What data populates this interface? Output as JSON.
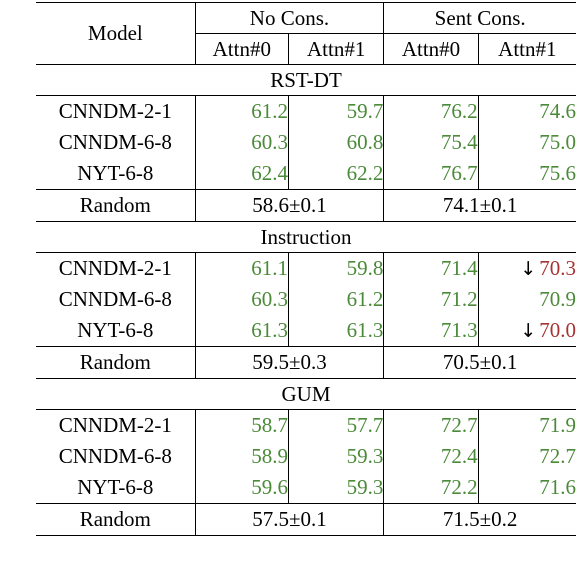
{
  "table": {
    "model_header": "Model",
    "group_headers": [
      "No Cons.",
      "Sent Cons."
    ],
    "sub_headers": [
      "Attn#0",
      "Attn#1",
      "Attn#0",
      "Attn#1"
    ],
    "colors": {
      "green": "#4a8a38",
      "red": "#a83232"
    },
    "sections": [
      {
        "name": "RST-DT",
        "rows": [
          {
            "model": "CNNDM-2-1",
            "values": [
              "61.2",
              "59.7",
              "76.2",
              "74.6"
            ],
            "bold": [
              false,
              false,
              false,
              false
            ],
            "down": [
              false,
              false,
              false,
              false
            ],
            "red": [
              false,
              false,
              false,
              false
            ]
          },
          {
            "model": "CNNDM-6-8",
            "values": [
              "60.3",
              "60.8",
              "75.4",
              "75.0"
            ],
            "bold": [
              false,
              false,
              false,
              false
            ],
            "down": [
              false,
              false,
              false,
              false
            ],
            "red": [
              false,
              false,
              false,
              false
            ]
          },
          {
            "model": "NYT-6-8",
            "values": [
              "62.4",
              "62.2",
              "76.7",
              "75.6"
            ],
            "bold": [
              true,
              false,
              true,
              false
            ],
            "down": [
              false,
              false,
              false,
              false
            ],
            "red": [
              false,
              false,
              false,
              false
            ]
          }
        ],
        "random": {
          "label": "Random",
          "values": [
            "58.6±0.1",
            "74.1±0.1"
          ]
        }
      },
      {
        "name": "Instruction",
        "rows": [
          {
            "model": "CNNDM-2-1",
            "values": [
              "61.1",
              "59.8",
              "71.4",
              "70.3"
            ],
            "bold": [
              false,
              false,
              true,
              false
            ],
            "down": [
              false,
              false,
              false,
              true
            ],
            "red": [
              false,
              false,
              false,
              true
            ]
          },
          {
            "model": "CNNDM-6-8",
            "values": [
              "60.3",
              "61.2",
              "71.2",
              "70.9"
            ],
            "bold": [
              false,
              true,
              false,
              false
            ],
            "down": [
              false,
              false,
              false,
              false
            ],
            "red": [
              false,
              false,
              false,
              false
            ]
          },
          {
            "model": "NYT-6-8",
            "values": [
              "61.3",
              "61.3",
              "71.3",
              "70.0"
            ],
            "bold": [
              true,
              false,
              false,
              false
            ],
            "down": [
              false,
              false,
              false,
              true
            ],
            "red": [
              false,
              false,
              false,
              true
            ]
          }
        ],
        "random": {
          "label": "Random",
          "values": [
            "59.5±0.3",
            "70.5±0.1"
          ]
        }
      },
      {
        "name": "GUM",
        "rows": [
          {
            "model": "CNNDM-2-1",
            "values": [
              "58.7",
              "57.7",
              "72.7",
              "71.9"
            ],
            "bold": [
              false,
              false,
              true,
              false
            ],
            "down": [
              false,
              false,
              false,
              false
            ],
            "red": [
              false,
              false,
              false,
              false
            ]
          },
          {
            "model": "CNNDM-6-8",
            "values": [
              "58.9",
              "59.3",
              "72.4",
              "72.7"
            ],
            "bold": [
              false,
              false,
              false,
              true
            ],
            "down": [
              false,
              false,
              false,
              false
            ],
            "red": [
              false,
              false,
              false,
              false
            ]
          },
          {
            "model": "NYT-6-8",
            "values": [
              "59.6",
              "59.3",
              "72.2",
              "71.6"
            ],
            "bold": [
              true,
              false,
              false,
              false
            ],
            "down": [
              false,
              false,
              false,
              false
            ],
            "red": [
              false,
              false,
              false,
              false
            ]
          }
        ],
        "random": {
          "label": "Random",
          "values": [
            "57.5±0.1",
            "71.5±0.2"
          ]
        }
      }
    ]
  }
}
